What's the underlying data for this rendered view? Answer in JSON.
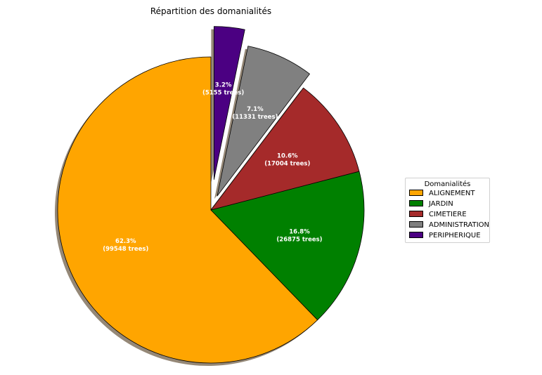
{
  "chart_data": {
    "type": "pie",
    "title": "Répartition des domanialités",
    "legend_title": "Domanialités",
    "legend_position": "right",
    "shadow": true,
    "slices": [
      {
        "label": "ALIGNEMENT",
        "value": 99548,
        "percent": "62.3%",
        "count_label": "(99548 trees)",
        "color": "#FFA500",
        "explode": 0
      },
      {
        "label": "JARDIN",
        "value": 26875,
        "percent": "16.8%",
        "count_label": "(26875 trees)",
        "color": "#008000",
        "explode": 0
      },
      {
        "label": "CIMETIERE",
        "value": 17004,
        "percent": "10.6%",
        "count_label": "(17004 trees)",
        "color": "#A52A2A",
        "explode": 0
      },
      {
        "label": "ADMINISTRATION",
        "value": 11331,
        "percent": "7.1%",
        "count_label": "(11331 trees)",
        "color": "#808080",
        "explode": 0.1
      },
      {
        "label": "PERIPHERIQUE",
        "value": 5155,
        "percent": "3.2%",
        "count_label": "(5155 trees)",
        "color": "#4B0082",
        "explode": 0.2
      }
    ]
  }
}
